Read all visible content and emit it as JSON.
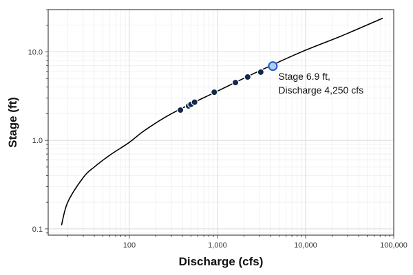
{
  "chart_data": {
    "type": "line",
    "xlabel": "Discharge (cfs)",
    "ylabel": "Stage (ft)",
    "x_scale": "log",
    "y_scale": "log",
    "xlim": [
      12,
      100000
    ],
    "ylim": [
      0.085,
      30
    ],
    "grid": true,
    "x_ticks": [
      {
        "value": 100,
        "label": "100"
      },
      {
        "value": 1000,
        "label": "1,000"
      },
      {
        "value": 10000,
        "label": "10,000"
      },
      {
        "value": 100000,
        "label": "100,000"
      }
    ],
    "y_ticks": [
      {
        "value": 0.1,
        "label": "0.1"
      },
      {
        "value": 1,
        "label": "1.0"
      },
      {
        "value": 10,
        "label": "10.0"
      }
    ],
    "series": [
      {
        "type": "line",
        "color": "#000000",
        "x": [
          17,
          20,
          30,
          40,
          60,
          100,
          150,
          300,
          1000,
          3000,
          9000,
          25000,
          75000
        ],
        "y": [
          0.11,
          0.2,
          0.38,
          0.5,
          0.68,
          0.95,
          1.3,
          2.0,
          3.6,
          6.1,
          10.0,
          15.0,
          24.0
        ]
      },
      {
        "type": "scatter",
        "color": "#0f2a4a",
        "x": [
          380,
          470,
          500,
          550,
          920,
          1600,
          2200,
          3100
        ],
        "y": [
          2.2,
          2.45,
          2.55,
          2.7,
          3.5,
          4.5,
          5.2,
          5.9
        ]
      }
    ],
    "highlight": {
      "x": 4250,
      "y": 6.9,
      "fill": "#aecdf2",
      "stroke": "#1f57c8"
    },
    "annotation": {
      "lines": [
        "Stage 6.9 ft,",
        "Discharge 4,250 cfs"
      ]
    }
  }
}
